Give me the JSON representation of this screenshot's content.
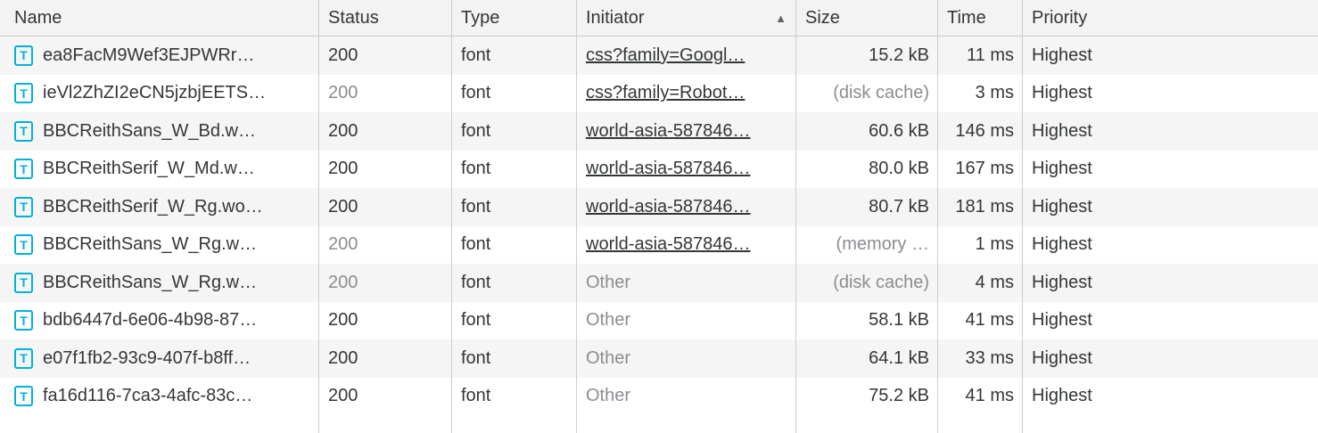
{
  "table": {
    "font_icon_glyph": "T",
    "sort_indicator": "▲",
    "columns": {
      "name": "Name",
      "status": "Status",
      "type": "Type",
      "initiator": "Initiator",
      "size": "Size",
      "time": "Time",
      "priority": "Priority"
    },
    "colors": {
      "icon_accent": "#00b2d8",
      "text_dark": "#333638",
      "text_muted": "#8a8d91",
      "header_bg": "#f3f3f3",
      "stripe_bg": "#f5f5f5",
      "border": "#cdcdcd"
    },
    "rows": [
      {
        "name": "ea8FacM9Wef3EJPWRr…",
        "status": "200",
        "status_muted": false,
        "type": "font",
        "initiator": "css?family=Googl…",
        "initiator_is_link": true,
        "size": "15.2 kB",
        "size_muted": false,
        "time": "11 ms",
        "priority": "Highest"
      },
      {
        "name": "ieVl2ZhZI2eCN5jzbjEETS…",
        "status": "200",
        "status_muted": true,
        "type": "font",
        "initiator": "css?family=Robot…",
        "initiator_is_link": true,
        "size": "(disk cache)",
        "size_muted": true,
        "time": "3 ms",
        "priority": "Highest"
      },
      {
        "name": "BBCReithSans_W_Bd.w…",
        "status": "200",
        "status_muted": false,
        "type": "font",
        "initiator": "world-asia-587846…",
        "initiator_is_link": true,
        "size": "60.6 kB",
        "size_muted": false,
        "time": "146 ms",
        "priority": "Highest"
      },
      {
        "name": "BBCReithSerif_W_Md.w…",
        "status": "200",
        "status_muted": false,
        "type": "font",
        "initiator": "world-asia-587846…",
        "initiator_is_link": true,
        "size": "80.0 kB",
        "size_muted": false,
        "time": "167 ms",
        "priority": "Highest"
      },
      {
        "name": "BBCReithSerif_W_Rg.wo…",
        "status": "200",
        "status_muted": false,
        "type": "font",
        "initiator": "world-asia-587846…",
        "initiator_is_link": true,
        "size": "80.7 kB",
        "size_muted": false,
        "time": "181 ms",
        "priority": "Highest"
      },
      {
        "name": "BBCReithSans_W_Rg.w…",
        "status": "200",
        "status_muted": true,
        "type": "font",
        "initiator": "world-asia-587846…",
        "initiator_is_link": true,
        "size": "(memory …",
        "size_muted": true,
        "time": "1 ms",
        "priority": "Highest"
      },
      {
        "name": "BBCReithSans_W_Rg.w…",
        "status": "200",
        "status_muted": true,
        "type": "font",
        "initiator": "Other",
        "initiator_is_link": false,
        "size": "(disk cache)",
        "size_muted": true,
        "time": "4 ms",
        "priority": "Highest"
      },
      {
        "name": "bdb6447d-6e06-4b98-87…",
        "status": "200",
        "status_muted": false,
        "type": "font",
        "initiator": "Other",
        "initiator_is_link": false,
        "size": "58.1 kB",
        "size_muted": false,
        "time": "41 ms",
        "priority": "Highest"
      },
      {
        "name": "e07f1fb2-93c9-407f-b8ff…",
        "status": "200",
        "status_muted": false,
        "type": "font",
        "initiator": "Other",
        "initiator_is_link": false,
        "size": "64.1 kB",
        "size_muted": false,
        "time": "33 ms",
        "priority": "Highest"
      },
      {
        "name": "fa16d116-7ca3-4afc-83c…",
        "status": "200",
        "status_muted": false,
        "type": "font",
        "initiator": "Other",
        "initiator_is_link": false,
        "size": "75.2 kB",
        "size_muted": false,
        "time": "41 ms",
        "priority": "Highest"
      }
    ]
  }
}
